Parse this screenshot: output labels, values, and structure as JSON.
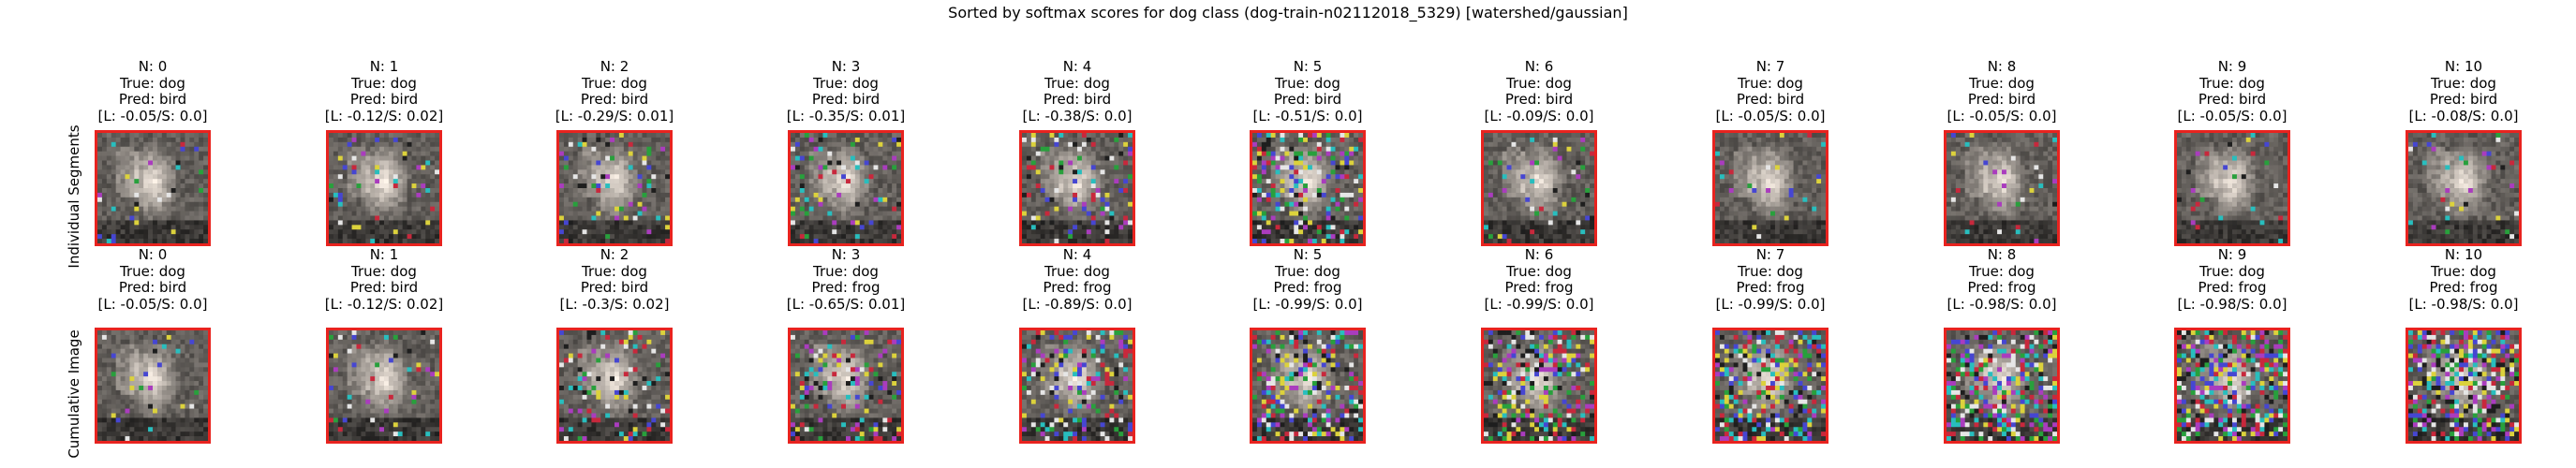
{
  "chart_data": {
    "type": "image-grid",
    "title": "Sorted by softmax scores for dog class (dog-train-n02112018_5329) [watershed/gaussian]",
    "rows": [
      {
        "label": "Individual Segments",
        "panels": [
          {
            "n": "N: 0",
            "true": "True: dog",
            "pred": "Pred: bird",
            "ls": "[L: -0.05/S: 0.0]",
            "noise": 0.05
          },
          {
            "n": "N: 1",
            "true": "True: dog",
            "pred": "Pred: bird",
            "ls": "[L: -0.12/S: 0.02]",
            "noise": 0.08
          },
          {
            "n": "N: 2",
            "true": "True: dog",
            "pred": "Pred: bird",
            "ls": "[L: -0.29/S: 0.01]",
            "noise": 0.14
          },
          {
            "n": "N: 3",
            "true": "True: dog",
            "pred": "Pred: bird",
            "ls": "[L: -0.35/S: 0.01]",
            "noise": 0.16
          },
          {
            "n": "N: 4",
            "true": "True: dog",
            "pred": "Pred: bird",
            "ls": "[L: -0.38/S: 0.0]",
            "noise": 0.17
          },
          {
            "n": "N: 5",
            "true": "True: dog",
            "pred": "Pred: bird",
            "ls": "[L: -0.51/S: 0.0]",
            "noise": 0.3
          },
          {
            "n": "N: 6",
            "true": "True: dog",
            "pred": "Pred: bird",
            "ls": "[L: -0.09/S: 0.0]",
            "noise": 0.06
          },
          {
            "n": "N: 7",
            "true": "True: dog",
            "pred": "Pred: bird",
            "ls": "[L: -0.05/S: 0.0]",
            "noise": 0.05
          },
          {
            "n": "N: 8",
            "true": "True: dog",
            "pred": "Pred: bird",
            "ls": "[L: -0.05/S: 0.0]",
            "noise": 0.05
          },
          {
            "n": "N: 9",
            "true": "True: dog",
            "pred": "Pred: bird",
            "ls": "[L: -0.05/S: 0.0]",
            "noise": 0.05
          },
          {
            "n": "N: 10",
            "true": "True: dog",
            "pred": "Pred: bird",
            "ls": "[L: -0.08/S: 0.0]",
            "noise": 0.06
          }
        ]
      },
      {
        "label": "Cumulative Image",
        "panels": [
          {
            "n": "N: 0",
            "true": "True: dog",
            "pred": "Pred: bird",
            "ls": "[L: -0.05/S: 0.0]",
            "noise": 0.05
          },
          {
            "n": "N: 1",
            "true": "True: dog",
            "pred": "Pred: bird",
            "ls": "[L: -0.12/S: 0.02]",
            "noise": 0.08
          },
          {
            "n": "N: 2",
            "true": "True: dog",
            "pred": "Pred: bird",
            "ls": "[L: -0.3/S: 0.02]",
            "noise": 0.15
          },
          {
            "n": "N: 3",
            "true": "True: dog",
            "pred": "Pred: frog",
            "ls": "[L: -0.65/S: 0.01]",
            "noise": 0.22
          },
          {
            "n": "N: 4",
            "true": "True: dog",
            "pred": "Pred: frog",
            "ls": "[L: -0.89/S: 0.0]",
            "noise": 0.3
          },
          {
            "n": "N: 5",
            "true": "True: dog",
            "pred": "Pred: frog",
            "ls": "[L: -0.99/S: 0.0]",
            "noise": 0.38
          },
          {
            "n": "N: 6",
            "true": "True: dog",
            "pred": "Pred: frog",
            "ls": "[L: -0.99/S: 0.0]",
            "noise": 0.42
          },
          {
            "n": "N: 7",
            "true": "True: dog",
            "pred": "Pred: frog",
            "ls": "[L: -0.99/S: 0.0]",
            "noise": 0.45
          },
          {
            "n": "N: 8",
            "true": "True: dog",
            "pred": "Pred: frog",
            "ls": "[L: -0.98/S: 0.0]",
            "noise": 0.5
          },
          {
            "n": "N: 9",
            "true": "True: dog",
            "pred": "Pred: frog",
            "ls": "[L: -0.98/S: 0.0]",
            "noise": 0.52
          },
          {
            "n": "N: 10",
            "true": "True: dog",
            "pred": "Pred: frog",
            "ls": "[L: -0.98/S: 0.0]",
            "noise": 0.55
          }
        ]
      }
    ],
    "frame_color": "#e8231f"
  }
}
